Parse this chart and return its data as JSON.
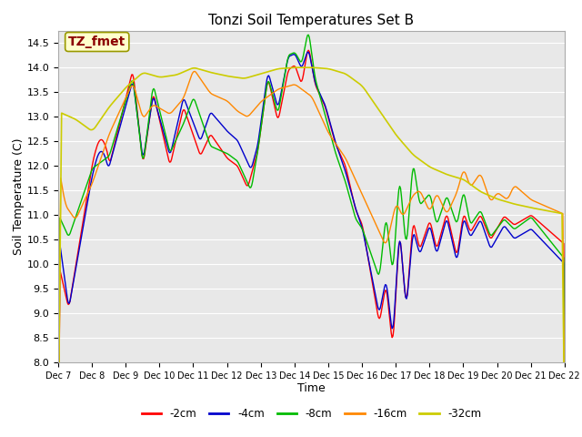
{
  "title": "Tonzi Soil Temperatures Set B",
  "xlabel": "Time",
  "ylabel": "Soil Temperature (C)",
  "ylim": [
    8.0,
    14.75
  ],
  "yticks": [
    8.0,
    8.5,
    9.0,
    9.5,
    10.0,
    10.5,
    11.0,
    11.5,
    12.0,
    12.5,
    13.0,
    13.5,
    14.0,
    14.5
  ],
  "annotation_text": "TZ_fmet",
  "annotation_color": "#8B0000",
  "annotation_bg": "#FFFFCC",
  "bg_color": "#E8E8E8",
  "colors": {
    "-2cm": "#FF0000",
    "-4cm": "#0000CC",
    "-8cm": "#00BB00",
    "-16cm": "#FF8800",
    "-32cm": "#CCCC00"
  },
  "xtick_labels": [
    "Dec 7",
    "Dec 8",
    "Dec 9",
    "Dec 10",
    "Dec 11",
    "Dec 12",
    "Dec 13",
    "Dec 14",
    "Dec 15",
    "Dec 16",
    "Dec 17",
    "Dec 18",
    "Dec 19",
    "Dec 20",
    "Dec 21",
    "Dec 22"
  ],
  "num_points": 600,
  "days": 15,
  "figsize": [
    6.4,
    4.8
  ],
  "dpi": 100
}
